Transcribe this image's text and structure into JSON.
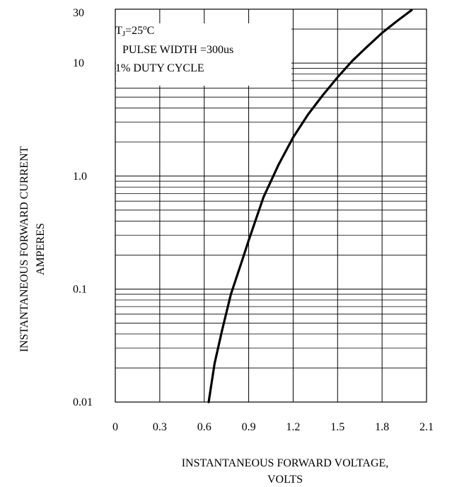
{
  "chart_data": {
    "type": "line",
    "x_label_line1": "INSTANTANEOUS FORWARD VOLTAGE,",
    "x_label_line2": "VOLTS",
    "y_label_line1": "INSTANTANEOUS FORWARD CURRENT",
    "y_label_line2": "AMPERES",
    "x_ticks": [
      "0",
      "0.3",
      "0.6",
      "0.9",
      "1.2",
      "1.5",
      "1.8",
      "2.1"
    ],
    "y_ticks": [
      "0.01",
      "0.1",
      "1.0",
      "10",
      "30"
    ],
    "xlim": [
      0,
      2.1
    ],
    "ylim": [
      0.01,
      30
    ],
    "y_scale": "log",
    "grid": true,
    "annotation": {
      "line1_main": "T",
      "line1_sub": "J",
      "line1_rest": "=25",
      "line1_deg": "o",
      "line1_unit": "C",
      "line2": "PULSE WIDTH =300us",
      "line3": "1% DUTY CYCLE"
    },
    "series": [
      {
        "x": [
          0.63,
          0.67,
          0.72,
          0.78,
          0.85,
          0.9,
          1.0,
          1.1,
          1.2,
          1.3,
          1.4,
          1.5,
          1.6,
          1.7,
          1.8,
          1.9,
          2.0
        ],
        "y": [
          0.01,
          0.022,
          0.043,
          0.09,
          0.17,
          0.27,
          0.65,
          1.25,
          2.2,
          3.5,
          5.2,
          7.5,
          10.5,
          14,
          18.5,
          23.5,
          29.5
        ]
      }
    ]
  }
}
